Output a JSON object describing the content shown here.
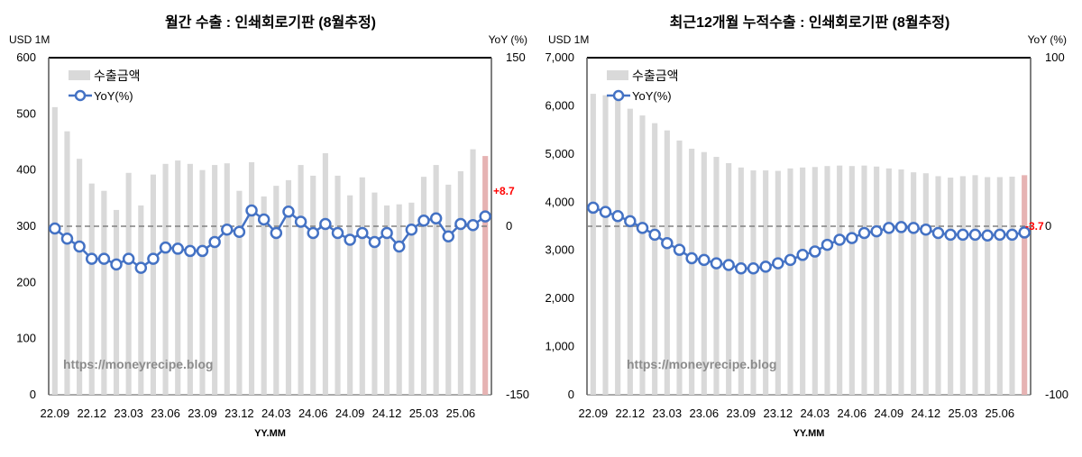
{
  "colors": {
    "bar": "#d9d9d9",
    "bar_highlight": "#e6b3b3",
    "line": "#4472c4",
    "annotation": "#ff0000",
    "zero_line": "#808080"
  },
  "chart_data": [
    {
      "type": "bar+line",
      "title": "월간 수출 : 인쇄회로기판 (8월추정)",
      "left_unit": "USD 1M",
      "right_unit": "YoY (%)",
      "xlabel": "YY.MM",
      "ylim": [
        0,
        600
      ],
      "yticks": [
        0,
        100,
        200,
        300,
        400,
        500,
        600
      ],
      "y2lim": [
        -150,
        150
      ],
      "y2ticks": [
        -150,
        0,
        150
      ],
      "legend": {
        "bar": "수출금액",
        "line": "YoY(%)",
        "placement": "top-left"
      },
      "watermark": "https://moneyrecipe.blog",
      "annotation": "+8.7",
      "xtick_labels": [
        "22.09",
        "22.12",
        "23.03",
        "23.06",
        "23.09",
        "23.12",
        "24.03",
        "24.06",
        "24.09",
        "24.12",
        "25.03",
        "25.06"
      ],
      "categories": [
        "22.09",
        "22.10",
        "22.11",
        "22.12",
        "23.01",
        "23.02",
        "23.03",
        "23.04",
        "23.05",
        "23.06",
        "23.07",
        "23.08",
        "23.09",
        "23.10",
        "23.11",
        "23.12",
        "24.01",
        "24.02",
        "24.03",
        "24.04",
        "24.05",
        "24.06",
        "24.07",
        "24.08",
        "24.09",
        "24.10",
        "24.11",
        "24.12",
        "25.01",
        "25.02",
        "25.03",
        "25.04",
        "25.05",
        "25.06",
        "25.07",
        "25.08"
      ],
      "bars": [
        512,
        469,
        420,
        376,
        363,
        329,
        395,
        337,
        392,
        411,
        417,
        411,
        400,
        409,
        412,
        363,
        414,
        353,
        372,
        382,
        409,
        390,
        430,
        390,
        355,
        387,
        360,
        337,
        339,
        342,
        388,
        409,
        374,
        398,
        437,
        425
      ],
      "yoy": [
        -2,
        -11,
        -18,
        -29,
        -29,
        -34,
        -29,
        -37,
        -29,
        -19,
        -20,
        -22,
        -22,
        -14,
        -3,
        -5,
        14,
        6,
        -6,
        13,
        4,
        -6,
        2,
        -6,
        -12,
        -6,
        -14,
        -6,
        -18,
        -3,
        5,
        7,
        -9,
        2,
        1,
        8.7
      ]
    },
    {
      "type": "bar+line",
      "title": "최근12개월 누적수출 : 인쇄회로기판 (8월추정)",
      "left_unit": "USD 1M",
      "right_unit": "YoY (%)",
      "xlabel": "YY.MM",
      "ylim": [
        0,
        7000
      ],
      "yticks": [
        0,
        1000,
        2000,
        3000,
        4000,
        5000,
        6000,
        7000
      ],
      "y2lim": [
        -100,
        100
      ],
      "y2ticks": [
        -100,
        0,
        100
      ],
      "legend": {
        "bar": "수출금액",
        "line": "YoY(%)",
        "placement": "top-left"
      },
      "watermark": "https://moneyrecipe.blog",
      "annotation": "-3.7",
      "xtick_labels": [
        "22.09",
        "22.12",
        "23.03",
        "23.06",
        "23.09",
        "23.12",
        "24.03",
        "24.06",
        "24.09",
        "24.12",
        "25.03",
        "25.06"
      ],
      "categories": [
        "22.09",
        "22.10",
        "22.11",
        "22.12",
        "23.01",
        "23.02",
        "23.03",
        "23.04",
        "23.05",
        "23.06",
        "23.07",
        "23.08",
        "23.09",
        "23.10",
        "23.11",
        "23.12",
        "24.01",
        "24.02",
        "24.03",
        "24.04",
        "24.05",
        "24.06",
        "24.07",
        "24.08",
        "24.09",
        "24.10",
        "24.11",
        "24.12",
        "25.01",
        "25.02",
        "25.03",
        "25.04",
        "25.05",
        "25.06",
        "25.07",
        "25.08"
      ],
      "bars": [
        6250,
        6220,
        6140,
        5940,
        5800,
        5640,
        5490,
        5280,
        5110,
        5040,
        4940,
        4810,
        4720,
        4660,
        4660,
        4650,
        4700,
        4720,
        4730,
        4750,
        4760,
        4750,
        4760,
        4740,
        4700,
        4680,
        4620,
        4600,
        4540,
        4510,
        4540,
        4560,
        4520,
        4520,
        4530,
        4560
      ],
      "yoy": [
        11,
        8.5,
        6,
        3,
        -1,
        -5,
        -10,
        -14,
        -19,
        -20,
        -22,
        -23,
        -25,
        -25,
        -24,
        -22,
        -20,
        -17,
        -15,
        -11,
        -8,
        -7,
        -4,
        -3,
        -1,
        -0.5,
        -1,
        -2,
        -4,
        -5,
        -5,
        -5,
        -5.5,
        -5,
        -5,
        -3.7
      ]
    }
  ]
}
